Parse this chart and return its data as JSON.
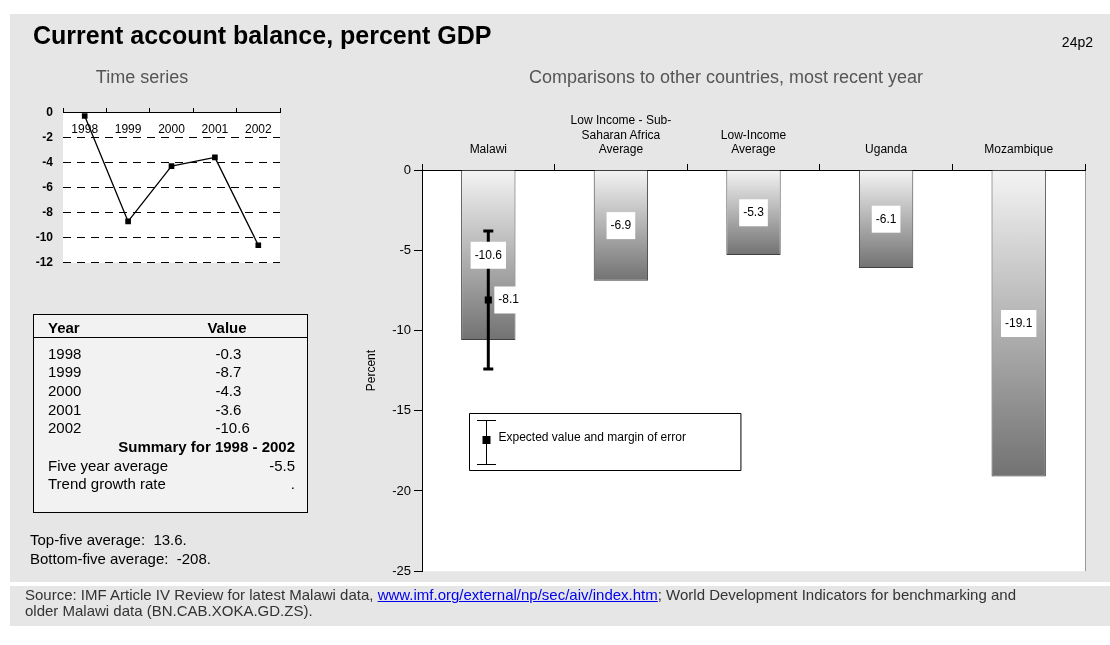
{
  "chart_data": [
    {
      "type": "line",
      "title": "Current account balance, percent GDP",
      "subtitle": "Time series",
      "categories": [
        "1998",
        "1999",
        "2000",
        "2001",
        "2002"
      ],
      "values": [
        -0.3,
        -8.7,
        -4.3,
        -3.6,
        -10.6
      ],
      "color": "#000000",
      "marker": "square",
      "ylim": [
        -12,
        0
      ],
      "yticks": [
        -12,
        -10,
        -8,
        -6,
        -4,
        -2,
        0
      ],
      "grid": "y"
    },
    {
      "type": "other",
      "annotations": [
        "Year",
        "Value",
        "1998 -0.3",
        "1999 -8.7",
        "2000 -4.3",
        "2001 -3.6",
        "2002 -10.6",
        "Summary for 1998 - 2002",
        "Five year average",
        "-5.5",
        "Trend growth rate",
        ".",
        "Top-five average:  13.6.",
        "Bottom-five average:  -208."
      ]
    },
    {
      "type": "bar",
      "title": "Comparisons to other countries, most recent year",
      "ylabel": "Percent",
      "categories": [
        "Malawi",
        "Low Income - Sub-Saharan Africa Average",
        "Low-Income Average",
        "Uganda",
        "Mozambique"
      ],
      "series": [
        {
          "color": "#b3b3b3",
          "values": [
            -10.6,
            -6.9,
            -5.3,
            -6.1,
            -19.1
          ]
        },
        {
          "type": "scatter",
          "name": "Expected value and margin of error",
          "color": "#000000",
          "x": [
            "Malawi"
          ],
          "values": [
            -8.1
          ],
          "errors": [
            4.3
          ]
        }
      ],
      "ylim": [
        -25,
        0
      ],
      "yticks": [
        -25,
        -20,
        -15,
        -10,
        -5,
        0
      ],
      "marker": "square",
      "data_labels": true,
      "legend": "bottom left",
      "annotations": [
        "24p2",
        "Source: IMF Article IV Review for latest Malawi data, www.imf.org/external/np/sec/aiv/index.htm; World Development Indicators for benchmarking and older Malawi data (BN.CAB.XOKA.GD.ZS)."
      ]
    }
  ]
}
